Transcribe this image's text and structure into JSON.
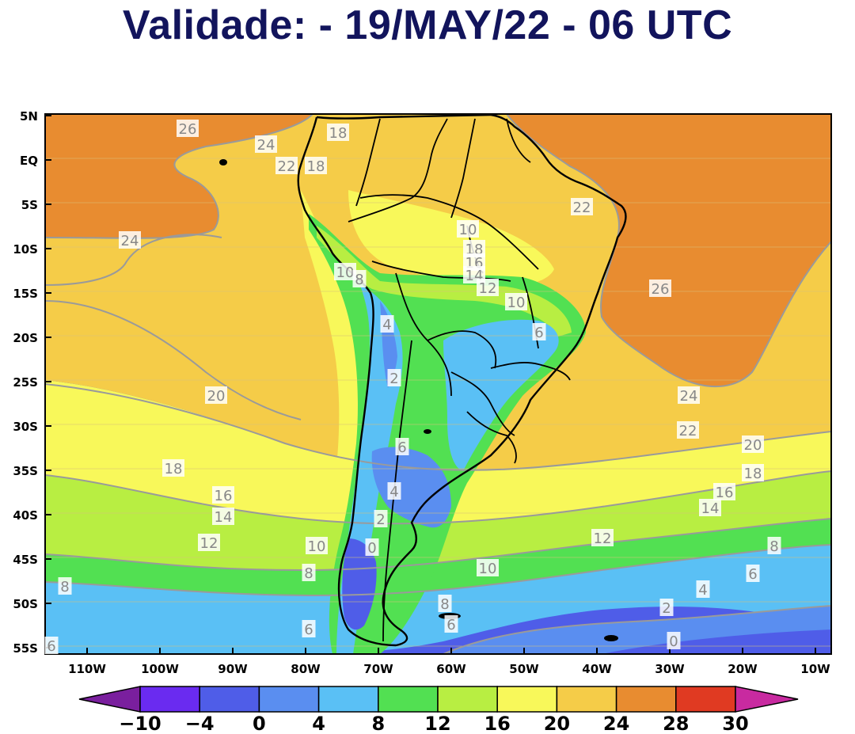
{
  "title": "Validade: - 19/MAY/22 - 06 UTC",
  "axes": {
    "lat_labels": [
      "5N",
      "EQ",
      "5S",
      "10S",
      "15S",
      "20S",
      "25S",
      "30S",
      "35S",
      "40S",
      "45S",
      "50S",
      "55S"
    ],
    "lon_labels": [
      "110W",
      "100W",
      "90W",
      "80W",
      "70W",
      "60W",
      "50W",
      "40W",
      "30W",
      "20W",
      "10W"
    ]
  },
  "colorbar": {
    "ticks": [
      "-10",
      "-4",
      "0",
      "4",
      "8",
      "12",
      "16",
      "20",
      "24",
      "28",
      "30"
    ],
    "colors": [
      "#7a1f9e",
      "#6a2bf0",
      "#4f5de8",
      "#5a8ef0",
      "#5ac0f5",
      "#52e052",
      "#b8ee42",
      "#f8f85a",
      "#f5cc48",
      "#e88c30",
      "#e03a22",
      "#c82aa0"
    ]
  },
  "contour_labels": [
    {
      "text": "26"
    },
    {
      "text": "24"
    },
    {
      "text": "22"
    },
    {
      "text": "18"
    },
    {
      "text": "18"
    },
    {
      "text": "24"
    },
    {
      "text": "10"
    },
    {
      "text": "8"
    },
    {
      "text": "4"
    },
    {
      "text": "2"
    },
    {
      "text": "20"
    },
    {
      "text": "18"
    },
    {
      "text": "16"
    },
    {
      "text": "14"
    },
    {
      "text": "12"
    },
    {
      "text": "10"
    },
    {
      "text": "8"
    },
    {
      "text": "8"
    },
    {
      "text": "6"
    },
    {
      "text": "4"
    },
    {
      "text": "2"
    },
    {
      "text": "0"
    },
    {
      "text": "6"
    },
    {
      "text": "10"
    },
    {
      "text": "18"
    },
    {
      "text": "16"
    },
    {
      "text": "14"
    },
    {
      "text": "12"
    },
    {
      "text": "10"
    },
    {
      "text": "6"
    },
    {
      "text": "22"
    },
    {
      "text": "26"
    },
    {
      "text": "24"
    },
    {
      "text": "22"
    },
    {
      "text": "20"
    },
    {
      "text": "18"
    },
    {
      "text": "16"
    },
    {
      "text": "14"
    },
    {
      "text": "12"
    },
    {
      "text": "8"
    },
    {
      "text": "6"
    },
    {
      "text": "4"
    },
    {
      "text": "2"
    },
    {
      "text": "0"
    },
    {
      "text": "8"
    },
    {
      "text": "6"
    },
    {
      "text": "6"
    },
    {
      "text": "10"
    }
  ]
}
